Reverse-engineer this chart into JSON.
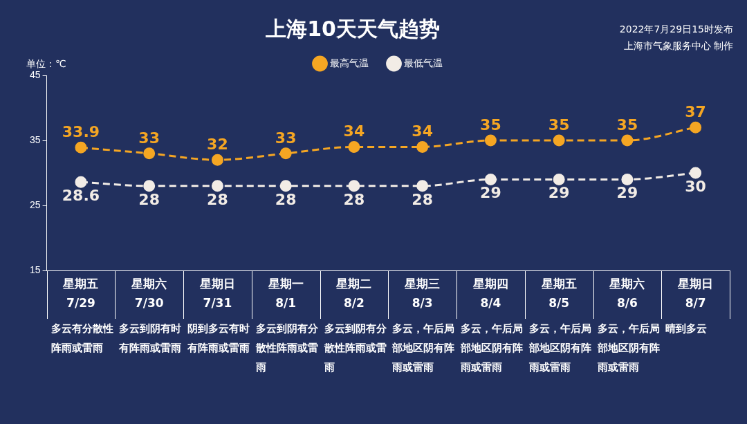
{
  "chart_data": {
    "type": "line",
    "title": "上海10天天气趋势",
    "ylabel": "单位：℃",
    "categories": [
      "星期五 7/29",
      "星期六 7/30",
      "星期日 7/31",
      "星期一 8/1",
      "星期二 8/2",
      "星期三 8/3",
      "星期四 8/4",
      "星期五 8/5",
      "星期六 8/6",
      "星期日 8/7"
    ],
    "series": [
      {
        "name": "最高气温",
        "color": "#f5a623",
        "values": [
          33.9,
          33,
          32,
          33,
          34,
          34,
          35,
          35,
          35,
          37
        ]
      },
      {
        "name": "最低气温",
        "color": "#f2ece6",
        "values": [
          28.6,
          28,
          28,
          28,
          28,
          28,
          29,
          29,
          29,
          30
        ]
      }
    ],
    "ylim": [
      15,
      45
    ],
    "yticks": [
      15,
      25,
      35,
      45
    ],
    "grid": false,
    "legend": "top",
    "marker": "circle",
    "line_style": "dashed",
    "data_labels": true,
    "annotations": [
      "2022年7月29日15时发布",
      "上海市气象服务中心 制作",
      "多云有分散性阵雨或雷雨",
      "多云到阴有时有阵雨或雷雨",
      "阴到多云有时有阵雨或雷雨",
      "多云到阴有分散性阵雨或雷雨",
      "多云到阴有分散性阵雨或雷雨",
      "多云，午后局部地区阴有阵雨或雷雨",
      "多云，午后局部地区阴有阵雨或雷雨",
      "多云，午后局部地区阴有阵雨或雷雨",
      "多云，午后局部地区阴有阵雨或雷雨",
      "晴到多云"
    ]
  }
}
